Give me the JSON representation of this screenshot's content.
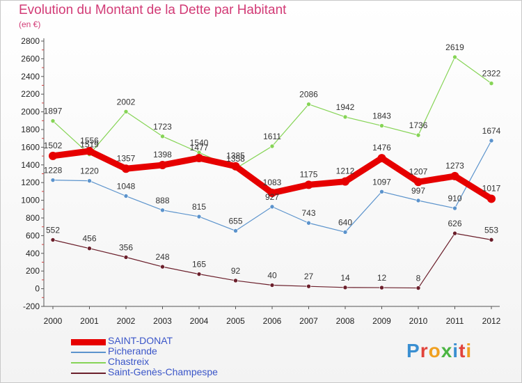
{
  "title": "Evolution du Montant de la Dette par Habitant",
  "subtitle": "(en €)",
  "logo": {
    "text": "Proxiti",
    "letter_colors": [
      "#3a8fd1",
      "#e1433b",
      "#f0a020",
      "#4bb543",
      "#3a8fd1",
      "#e1433b",
      "#f0a020"
    ]
  },
  "chart_data": {
    "type": "line",
    "x": [
      "2000",
      "2001",
      "2002",
      "2003",
      "2004",
      "2005",
      "2006",
      "2007",
      "2008",
      "2009",
      "2010",
      "2011",
      "2012"
    ],
    "ylim": [
      -200,
      2800
    ],
    "yticks": [
      "-200",
      "0",
      "200",
      "400",
      "600",
      "800",
      "1000",
      "1200",
      "1400",
      "1600",
      "1800",
      "2000",
      "2200",
      "2400",
      "2600",
      "2800"
    ],
    "grid": false,
    "legend_position": "bottom-left",
    "series": [
      {
        "name": "Saint-Genès-Champespe",
        "color": "#6b1f2b",
        "values": [
          552,
          456,
          356,
          248,
          165,
          92,
          40,
          27,
          14,
          12,
          8,
          626,
          553
        ]
      },
      {
        "name": "Picherande",
        "color": "#5b93cc",
        "values": [
          1228,
          1220,
          1048,
          888,
          815,
          655,
          927,
          743,
          640,
          1097,
          997,
          910,
          1674
        ]
      },
      {
        "name": "Chastreix",
        "color": "#86d456",
        "values": [
          1897,
          1519,
          2002,
          1723,
          1540,
          1358,
          1611,
          2086,
          1942,
          1843,
          1736,
          2619,
          2322
        ]
      },
      {
        "name": "SAINT-DONAT",
        "color": "#e60000",
        "values": [
          1502,
          1556,
          1357,
          1398,
          1477,
          1385,
          1083,
          1175,
          1212,
          1476,
          1207,
          1273,
          1017
        ]
      }
    ]
  },
  "legend_order": [
    "SAINT-DONAT",
    "Picherande",
    "Chastreix",
    "Saint-Genès-Champespe"
  ]
}
